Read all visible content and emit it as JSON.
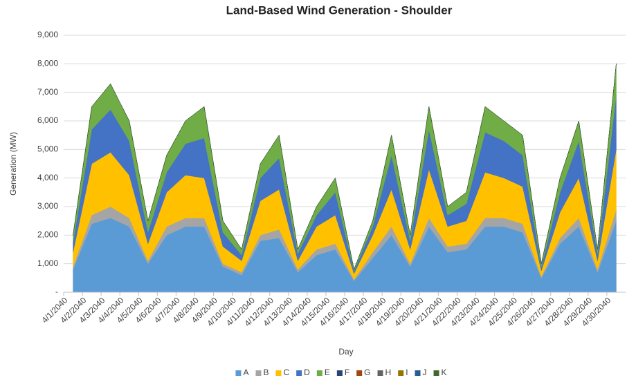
{
  "chart_data": {
    "type": "stacked_area",
    "title": "Land-Based Wind Generation - Shoulder",
    "x_label": "Day",
    "y_label": "Generation (MW)",
    "categories": [
      "4/1/2040",
      "4/2/2040",
      "4/3/2040",
      "4/4/2040",
      "4/5/2040",
      "4/6/2040",
      "4/7/2040",
      "4/8/2040",
      "4/9/2040",
      "4/10/2040",
      "4/11/2040",
      "4/12/2040",
      "4/13/2040",
      "4/14/2040",
      "4/15/2040",
      "4/16/2040",
      "4/17/2040",
      "4/18/2040",
      "4/19/2040",
      "4/20/2040",
      "4/21/2040",
      "4/22/2040",
      "4/23/2040",
      "4/24/2040",
      "4/25/2040",
      "4/26/2040",
      "4/27/2040",
      "4/28/2040",
      "4/29/2040",
      "4/30/2040"
    ],
    "series": [
      {
        "name": "A",
        "color": "#5b9bd5",
        "values": [
          800,
          2400,
          2600,
          2300,
          1000,
          2000,
          2300,
          2300,
          900,
          600,
          1800,
          1900,
          700,
          1300,
          1500,
          400,
          1200,
          2000,
          900,
          2300,
          1400,
          1500,
          2300,
          2300,
          2100,
          500,
          1700,
          2300,
          700,
          2500
        ]
      },
      {
        "name": "B",
        "color": "#a5a5a5",
        "values": [
          100,
          300,
          400,
          300,
          100,
          300,
          300,
          300,
          100,
          100,
          200,
          300,
          100,
          200,
          200,
          50,
          200,
          300,
          100,
          300,
          200,
          200,
          300,
          300,
          300,
          50,
          200,
          300,
          100,
          400
        ]
      },
      {
        "name": "C",
        "color": "#ffc000",
        "values": [
          500,
          1800,
          1900,
          1500,
          600,
          1200,
          1500,
          1400,
          600,
          400,
          1200,
          1400,
          300,
          800,
          1000,
          200,
          600,
          1300,
          500,
          1700,
          700,
          800,
          1600,
          1400,
          1300,
          200,
          900,
          1400,
          300,
          2100
        ]
      },
      {
        "name": "D",
        "color": "#4472c4",
        "values": [
          350,
          1200,
          1500,
          1200,
          400,
          700,
          1100,
          1400,
          500,
          200,
          800,
          1100,
          250,
          400,
          800,
          100,
          300,
          1200,
          300,
          1400,
          400,
          600,
          1400,
          1300,
          1100,
          150,
          700,
          1300,
          250,
          1900
        ]
      },
      {
        "name": "E",
        "color": "#70ad47",
        "values": [
          250,
          800,
          900,
          700,
          400,
          600,
          800,
          1100,
          400,
          200,
          500,
          800,
          150,
          300,
          500,
          50,
          200,
          700,
          200,
          800,
          300,
          400,
          900,
          700,
          700,
          100,
          500,
          700,
          150,
          1100
        ]
      },
      {
        "name": "F",
        "color": "#264478",
        "values": [
          0,
          0,
          0,
          0,
          0,
          0,
          0,
          0,
          0,
          0,
          0,
          0,
          0,
          0,
          0,
          0,
          0,
          0,
          0,
          0,
          0,
          0,
          0,
          0,
          0,
          0,
          0,
          0,
          0,
          0
        ]
      },
      {
        "name": "G",
        "color": "#9e480e",
        "values": [
          0,
          0,
          0,
          0,
          0,
          0,
          0,
          0,
          0,
          0,
          0,
          0,
          0,
          0,
          0,
          0,
          0,
          0,
          0,
          0,
          0,
          0,
          0,
          0,
          0,
          0,
          0,
          0,
          0,
          0
        ]
      },
      {
        "name": "H",
        "color": "#636363",
        "values": [
          0,
          0,
          0,
          0,
          0,
          0,
          0,
          0,
          0,
          0,
          0,
          0,
          0,
          0,
          0,
          0,
          0,
          0,
          0,
          0,
          0,
          0,
          0,
          0,
          0,
          0,
          0,
          0,
          0,
          0
        ]
      },
      {
        "name": "I",
        "color": "#997300",
        "values": [
          0,
          0,
          0,
          0,
          0,
          0,
          0,
          0,
          0,
          0,
          0,
          0,
          0,
          0,
          0,
          0,
          0,
          0,
          0,
          0,
          0,
          0,
          0,
          0,
          0,
          0,
          0,
          0,
          0,
          0
        ]
      },
      {
        "name": "J",
        "color": "#255e91",
        "values": [
          0,
          0,
          0,
          0,
          0,
          0,
          0,
          0,
          0,
          0,
          0,
          0,
          0,
          0,
          0,
          0,
          0,
          0,
          0,
          0,
          0,
          0,
          0,
          0,
          0,
          0,
          0,
          0,
          0,
          0
        ]
      },
      {
        "name": "K",
        "color": "#43682b",
        "values": [
          0,
          0,
          0,
          0,
          0,
          0,
          0,
          0,
          0,
          0,
          0,
          0,
          0,
          0,
          0,
          0,
          0,
          0,
          0,
          0,
          0,
          0,
          0,
          0,
          0,
          0,
          0,
          0,
          0,
          0
        ]
      }
    ],
    "ylim": [
      0,
      9000
    ],
    "yticks": [
      {
        "value": 0,
        "label": "-"
      },
      {
        "value": 1000,
        "label": "1,000"
      },
      {
        "value": 2000,
        "label": "2,000"
      },
      {
        "value": 3000,
        "label": "3,000"
      },
      {
        "value": 4000,
        "label": "4,000"
      },
      {
        "value": 5000,
        "label": "5,000"
      },
      {
        "value": 6000,
        "label": "6,000"
      },
      {
        "value": 7000,
        "label": "7,000"
      },
      {
        "value": 8000,
        "label": "8,000"
      },
      {
        "value": 9000,
        "label": "9,000"
      }
    ],
    "grid": true,
    "legend": "bottom"
  }
}
